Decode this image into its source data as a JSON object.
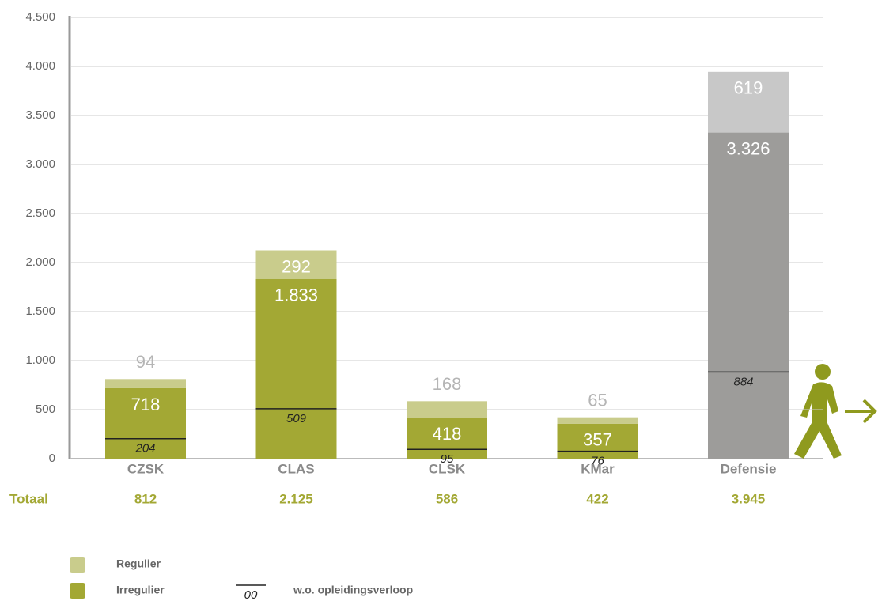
{
  "chart_data": {
    "type": "stacked_bar",
    "categories": [
      "CZSK",
      "CLAS",
      "CLSK",
      "KMar",
      "Defensie"
    ],
    "series": [
      {
        "name": "Irregulier",
        "color": "#a3a834",
        "colors": [
          "#a3a834",
          "#a3a834",
          "#a3a834",
          "#a3a834",
          "#9d9c9a"
        ],
        "values": [
          718,
          1833,
          418,
          357,
          3326
        ],
        "value_labels": [
          "718",
          "1.833",
          "418",
          "357",
          "3.326"
        ]
      },
      {
        "name": "Regulier",
        "color": "#c9cc8c",
        "colors": [
          "#c9cc8c",
          "#c9cc8c",
          "#c9cc8c",
          "#c9cc8c",
          "#c8c8c8"
        ],
        "values": [
          94,
          292,
          168,
          65,
          619
        ],
        "value_labels": [
          "94",
          "292",
          "168",
          "65",
          "619"
        ]
      }
    ],
    "markers": {
      "name": "w.o. opleidingsverloop",
      "legend_sample": "00",
      "values": [
        204,
        509,
        95,
        76,
        884
      ]
    },
    "totals": {
      "label": "Totaal",
      "values": [
        812,
        2125,
        586,
        422,
        3945
      ],
      "value_labels": [
        "812",
        "2.125",
        "586",
        "422",
        "3.945"
      ]
    },
    "ylim": [
      0,
      4500
    ],
    "yticks": [
      0,
      500,
      {
        "value": 1000,
        "label": "1.000"
      },
      {
        "value": 1500,
        "label": "1.500"
      },
      {
        "value": 2000,
        "label": "2.000"
      },
      {
        "value": 2500,
        "label": "2.500"
      },
      {
        "value": 3000,
        "label": "3.000"
      },
      {
        "value": 3500,
        "label": "3.500"
      },
      {
        "value": 4000,
        "label": "4.000"
      },
      {
        "value": 4500,
        "label": "4.500"
      }
    ],
    "grid": true
  }
}
